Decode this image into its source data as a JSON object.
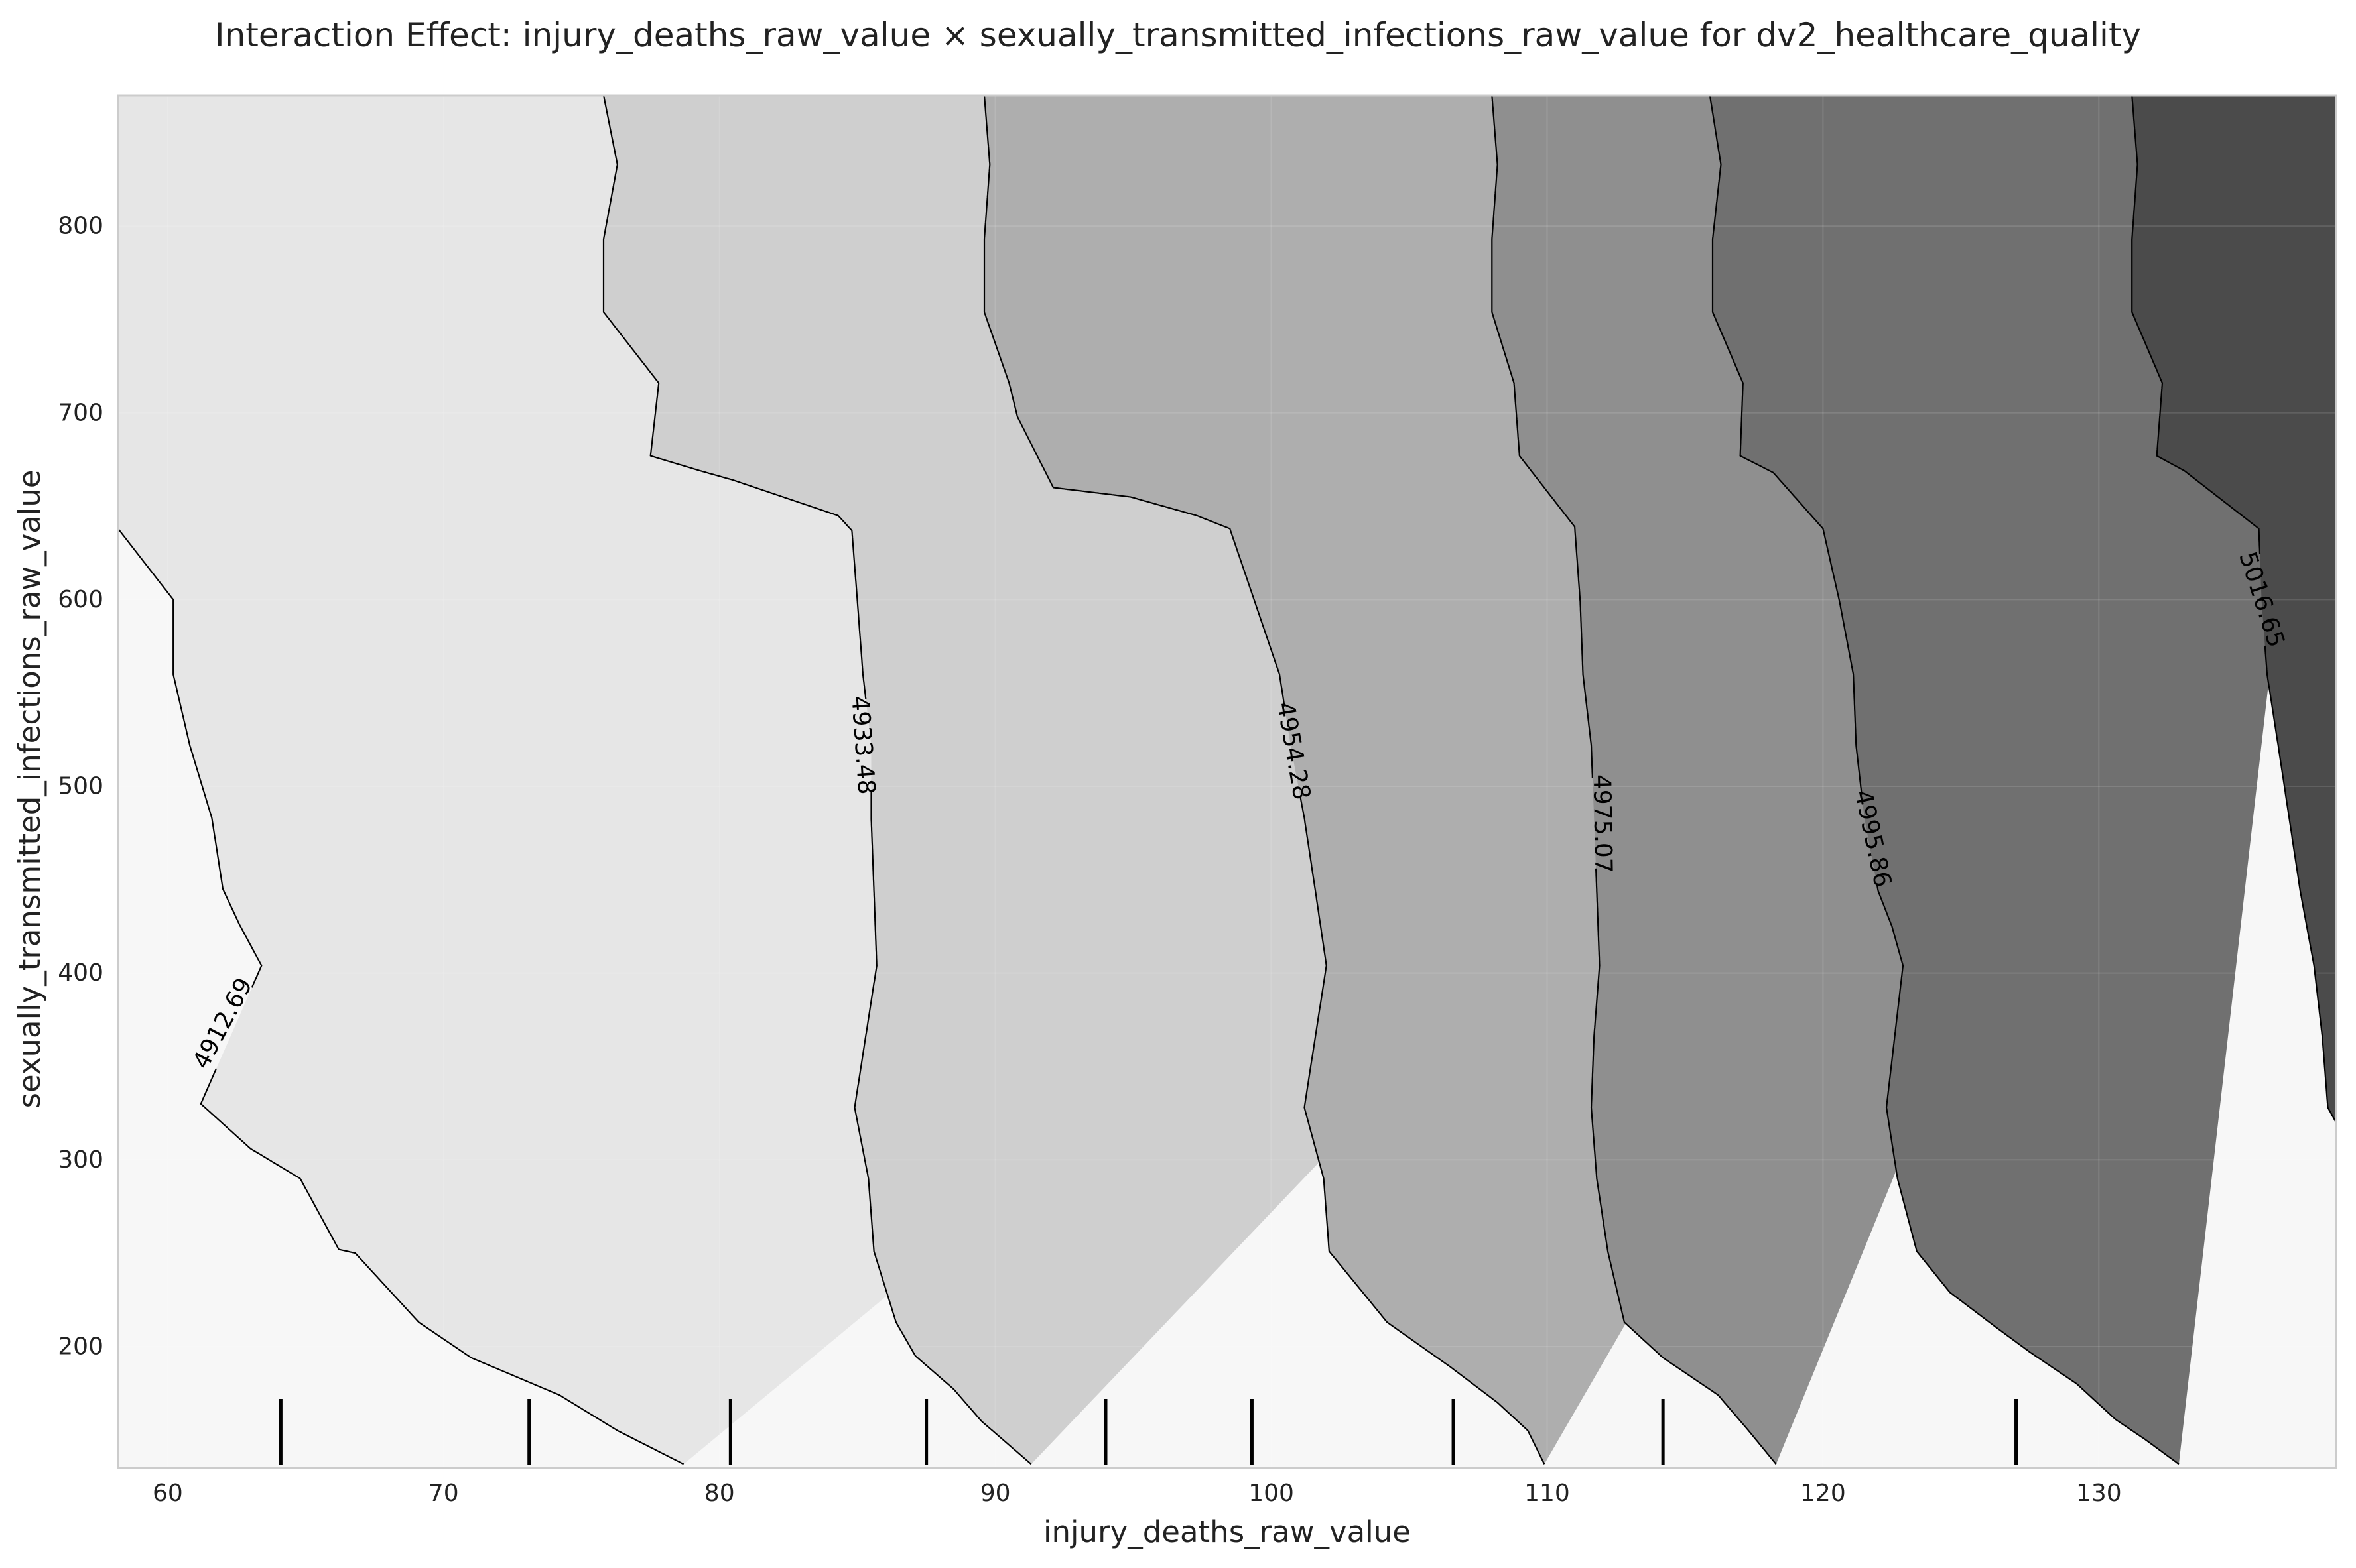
{
  "chart_data": {
    "type": "contour",
    "title": "Interaction Effect: injury_deaths_raw_value × sexually_transmitted_infections_raw_value for dv2_healthcare_quality",
    "xlabel": "injury_deaths_raw_value",
    "ylabel": "sexually_transmitted_infections_raw_value",
    "xlim": [
      58.2,
      138.6
    ],
    "ylim": [
      135,
      870
    ],
    "xticks": [
      60,
      70,
      80,
      90,
      100,
      110,
      120,
      130
    ],
    "yticks": [
      200,
      300,
      400,
      500,
      600,
      700,
      800
    ],
    "grid": true,
    "contour_levels": [
      4912.69,
      4933.48,
      4954.28,
      4975.07,
      4995.86,
      5016.65
    ],
    "contour_label_positions": [
      {
        "level": 4912.69,
        "x": 62.0,
        "y": 373,
        "angle": -62
      },
      {
        "level": 4933.48,
        "x": 85.2,
        "y": 522,
        "angle": 86
      },
      {
        "level": 4954.28,
        "x": 100.8,
        "y": 519,
        "angle": 80
      },
      {
        "level": 4975.07,
        "x": 112.0,
        "y": 480,
        "angle": 89
      },
      {
        "level": 4995.86,
        "x": 121.8,
        "y": 472,
        "angle": 78
      },
      {
        "level": 5016.65,
        "x": 135.9,
        "y": 600,
        "angle": 72
      }
    ],
    "fill_colors": [
      "#f7f7f7",
      "#e6e6e6",
      "#cfcfcf",
      "#aeaeae",
      "#8f8f8f",
      "#707070",
      "#4b4b4b"
    ],
    "line_color": "#000000",
    "contours": [
      {
        "level": 4912.69,
        "points": [
          [
            58.2,
            638
          ],
          [
            60.2,
            600
          ],
          [
            60.2,
            560
          ],
          [
            60.8,
            522
          ],
          [
            61.6,
            483
          ],
          [
            62.0,
            445
          ],
          [
            62.6,
            426
          ],
          [
            63.4,
            404
          ],
          [
            61.2,
            330
          ],
          [
            63.0,
            306
          ],
          [
            64.8,
            290
          ],
          [
            66.2,
            252
          ],
          [
            66.8,
            250
          ],
          [
            69.1,
            213
          ],
          [
            71.0,
            194
          ],
          [
            74.2,
            174
          ],
          [
            76.3,
            155
          ],
          [
            78.7,
            137
          ]
        ]
      },
      {
        "level": 4933.48,
        "points": [
          [
            75.8,
            870
          ],
          [
            76.3,
            833
          ],
          [
            75.8,
            793
          ],
          [
            75.8,
            754
          ],
          [
            77.8,
            716
          ],
          [
            77.5,
            677
          ],
          [
            79.3,
            669
          ],
          [
            80.5,
            664
          ],
          [
            84.3,
            645
          ],
          [
            84.8,
            637
          ],
          [
            85.0,
            599
          ],
          [
            85.2,
            560
          ],
          [
            85.5,
            522
          ],
          [
            85.5,
            483
          ],
          [
            85.6,
            444
          ],
          [
            85.7,
            404
          ],
          [
            85.3,
            366
          ],
          [
            84.9,
            328
          ],
          [
            85.4,
            290
          ],
          [
            85.6,
            251
          ],
          [
            86.4,
            213
          ],
          [
            87.1,
            195
          ],
          [
            88.5,
            177
          ],
          [
            89.5,
            160
          ],
          [
            91.3,
            137
          ]
        ]
      },
      {
        "level": 4954.28,
        "points": [
          [
            89.6,
            870
          ],
          [
            89.8,
            833
          ],
          [
            89.6,
            793
          ],
          [
            89.6,
            754
          ],
          [
            90.5,
            716
          ],
          [
            90.8,
            698
          ],
          [
            92.1,
            660
          ],
          [
            94.9,
            655
          ],
          [
            97.3,
            645
          ],
          [
            98.5,
            638
          ],
          [
            99.4,
            599
          ],
          [
            100.3,
            560
          ],
          [
            100.7,
            522
          ],
          [
            101.2,
            483
          ],
          [
            101.6,
            444
          ],
          [
            102.0,
            404
          ],
          [
            101.6,
            366
          ],
          [
            101.2,
            328
          ],
          [
            101.9,
            290
          ],
          [
            102.1,
            251
          ],
          [
            104.2,
            213
          ],
          [
            106.5,
            189
          ],
          [
            108.2,
            170
          ],
          [
            109.3,
            155
          ],
          [
            109.9,
            137
          ]
        ]
      },
      {
        "level": 4975.07,
        "points": [
          [
            108.0,
            870
          ],
          [
            108.2,
            833
          ],
          [
            108.0,
            793
          ],
          [
            108.0,
            754
          ],
          [
            108.8,
            716
          ],
          [
            109.0,
            677
          ],
          [
            111.0,
            639
          ],
          [
            111.2,
            599
          ],
          [
            111.3,
            560
          ],
          [
            111.6,
            522
          ],
          [
            111.7,
            483
          ],
          [
            111.8,
            444
          ],
          [
            111.9,
            404
          ],
          [
            111.7,
            366
          ],
          [
            111.6,
            328
          ],
          [
            111.8,
            290
          ],
          [
            112.2,
            251
          ],
          [
            112.8,
            213
          ],
          [
            114.2,
            194
          ],
          [
            116.2,
            174
          ],
          [
            117.3,
            155
          ],
          [
            118.3,
            137
          ]
        ]
      },
      {
        "level": 4995.86,
        "points": [
          [
            115.9,
            870
          ],
          [
            116.3,
            833
          ],
          [
            116.0,
            793
          ],
          [
            116.0,
            754
          ],
          [
            117.1,
            716
          ],
          [
            117.0,
            677
          ],
          [
            118.2,
            668
          ],
          [
            120.0,
            638
          ],
          [
            120.6,
            599
          ],
          [
            121.1,
            560
          ],
          [
            121.2,
            522
          ],
          [
            121.5,
            483
          ],
          [
            122.0,
            444
          ],
          [
            122.5,
            425
          ],
          [
            122.9,
            404
          ],
          [
            122.6,
            366
          ],
          [
            122.3,
            328
          ],
          [
            122.7,
            290
          ],
          [
            123.4,
            251
          ],
          [
            124.6,
            229
          ],
          [
            126.3,
            210
          ],
          [
            127.5,
            197
          ],
          [
            129.2,
            180
          ],
          [
            130.6,
            161
          ],
          [
            131.7,
            150
          ],
          [
            132.9,
            137
          ]
        ]
      },
      {
        "level": 5016.65,
        "points": [
          [
            131.2,
            870
          ],
          [
            131.4,
            833
          ],
          [
            131.2,
            793
          ],
          [
            131.2,
            754
          ],
          [
            132.3,
            716
          ],
          [
            132.1,
            677
          ],
          [
            133.1,
            669
          ],
          [
            135.8,
            638
          ],
          [
            135.9,
            599
          ],
          [
            136.1,
            560
          ],
          [
            136.5,
            522
          ],
          [
            136.9,
            483
          ],
          [
            137.3,
            444
          ],
          [
            137.8,
            404
          ],
          [
            138.1,
            366
          ],
          [
            138.3,
            328
          ],
          [
            138.6,
            320
          ]
        ]
      }
    ],
    "rug_x": [
      64.1,
      73.1,
      80.4,
      87.5,
      94.0,
      99.3,
      106.6,
      114.2,
      127.0
    ]
  }
}
